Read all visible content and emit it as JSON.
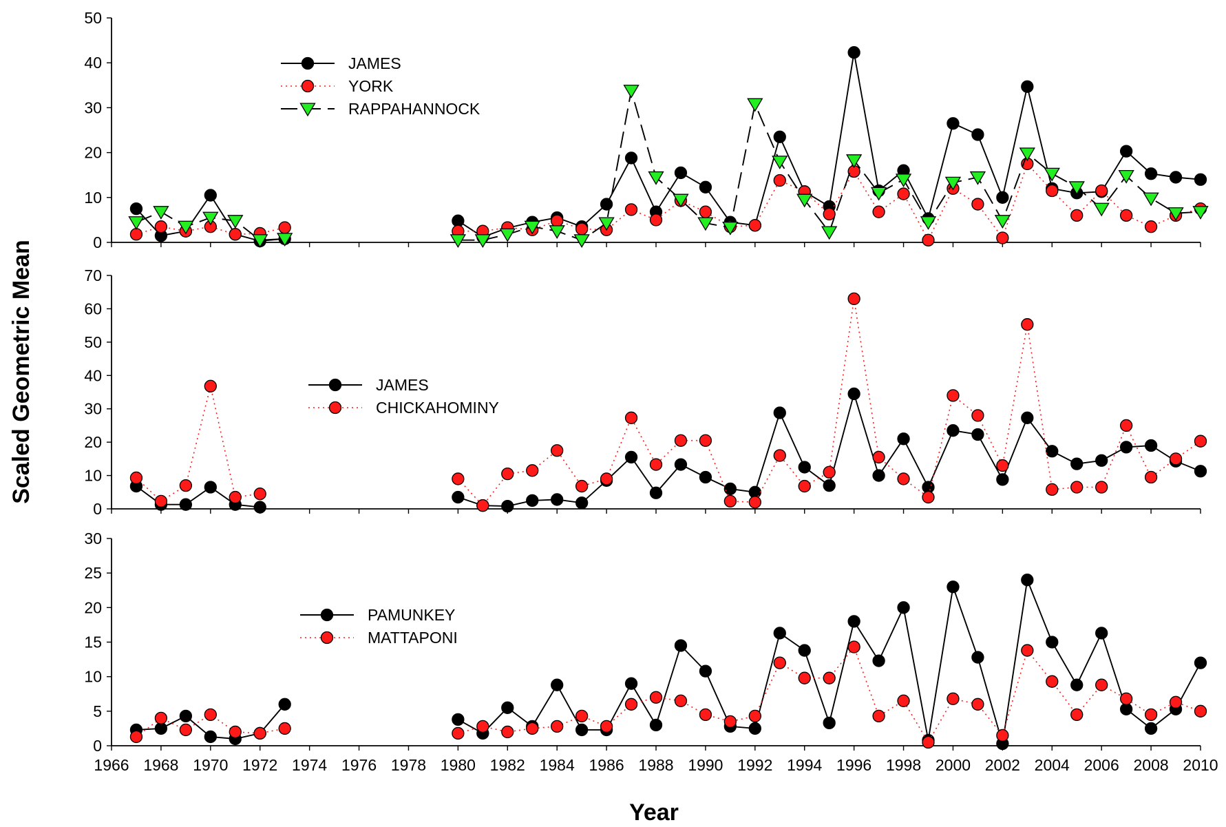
{
  "figure": {
    "ylabel": "Scaled Geometric Mean",
    "xlabel": "Year"
  },
  "colors": {
    "black": "#000000",
    "red": "#ff1a1a",
    "green": "#22ee22"
  },
  "chart_data": [
    {
      "type": "line",
      "title": "",
      "xlabel": "Year",
      "ylabel": "Scaled Geometric Mean",
      "xlim": [
        1966,
        2010
      ],
      "ylim": [
        0,
        50
      ],
      "yticks": [
        0,
        10,
        20,
        30,
        40,
        50
      ],
      "grid": false,
      "legend_position": "top-left",
      "series": [
        {
          "name": "JAMES",
          "color": "#000000",
          "dash": "solid",
          "marker": "circle",
          "segments": [
            {
              "x": [
                1967,
                1968,
                1969,
                1970,
                1971,
                1972,
                1973
              ],
              "y": [
                7.5,
                1.5,
                2.5,
                10.5,
                1.8,
                0.3,
                0.8
              ]
            },
            {
              "x": [
                1980,
                1981,
                1982,
                1983,
                1984,
                1985,
                1986,
                1987,
                1988,
                1989,
                1990,
                1991,
                1992,
                1993,
                1994,
                1995,
                1996,
                1997,
                1998,
                1999,
                2000,
                2001,
                2002,
                2003,
                2004,
                2005,
                2006,
                2007,
                2008,
                2009,
                2010
              ],
              "y": [
                4.8,
                1.2,
                3.2,
                4.5,
                5.5,
                3.5,
                8.5,
                18.8,
                6.8,
                15.5,
                12.3,
                4.5,
                3.8,
                23.5,
                11.3,
                8.0,
                42.3,
                11.5,
                16.0,
                5.3,
                26.5,
                24.0,
                10.0,
                34.7,
                12.0,
                11.0,
                11.3,
                20.3,
                15.3,
                14.5,
                14.0
              ]
            }
          ]
        },
        {
          "name": "YORK",
          "color": "#ff1a1a",
          "dash": "dot",
          "marker": "circle",
          "segments": [
            {
              "x": [
                1967,
                1968,
                1969,
                1970,
                1971,
                1972,
                1973
              ],
              "y": [
                1.8,
                3.5,
                2.5,
                3.5,
                1.8,
                2.0,
                3.3
              ]
            },
            {
              "x": [
                1980,
                1981,
                1982,
                1983,
                1984,
                1985,
                1986,
                1987,
                1988,
                1989,
                1990,
                1991,
                1992,
                1993,
                1994,
                1995,
                1996,
                1997,
                1998,
                1999,
                2000,
                2001,
                2002,
                2003,
                2004,
                2005,
                2006,
                2007,
                2008,
                2009,
                2010
              ],
              "y": [
                2.5,
                2.5,
                3.3,
                2.8,
                4.8,
                3.0,
                2.8,
                7.3,
                5.0,
                9.3,
                6.8,
                3.5,
                3.8,
                13.8,
                11.3,
                6.3,
                15.8,
                6.8,
                10.8,
                0.5,
                12.0,
                8.5,
                1.0,
                17.5,
                11.5,
                6.0,
                11.5,
                6.0,
                3.5,
                6.0,
                7.5
              ]
            }
          ]
        },
        {
          "name": "RAPPAHANNOCK",
          "color": "#000000",
          "fill": "#22ee22",
          "dash": "dash",
          "marker": "triangle-down",
          "segments": [
            {
              "x": [
                1967,
                1968,
                1969,
                1970,
                1971,
                1972,
                1973
              ],
              "y": [
                4.5,
                6.8,
                3.5,
                5.5,
                4.8,
                0.5,
                0.8
              ]
            },
            {
              "x": [
                1980,
                1981,
                1982,
                1983,
                1984,
                1985,
                1986,
                1987,
                1988,
                1989,
                1990,
                1991,
                1992,
                1993,
                1994,
                1995,
                1996,
                1997,
                1998,
                1999,
                2000,
                2001,
                2002,
                2003,
                2004,
                2005,
                2006,
                2007,
                2008,
                2009,
                2010
              ],
              "y": [
                0.5,
                0.5,
                1.8,
                3.5,
                2.5,
                0.5,
                4.3,
                33.8,
                14.5,
                9.5,
                4.3,
                3.3,
                30.8,
                18.0,
                9.5,
                2.3,
                18.3,
                11.0,
                14.0,
                4.5,
                13.3,
                14.5,
                4.8,
                19.8,
                15.3,
                12.3,
                7.5,
                14.8,
                9.8,
                6.5,
                6.8
              ]
            }
          ]
        }
      ]
    },
    {
      "type": "line",
      "title": "",
      "xlabel": "Year",
      "ylabel": "Scaled Geometric Mean",
      "xlim": [
        1966,
        2010
      ],
      "ylim": [
        0,
        70
      ],
      "yticks": [
        0,
        10,
        20,
        30,
        40,
        50,
        60,
        70
      ],
      "grid": false,
      "legend_position": "center-left",
      "series": [
        {
          "name": "JAMES",
          "color": "#000000",
          "dash": "solid",
          "marker": "circle",
          "segments": [
            {
              "x": [
                1967,
                1968,
                1969,
                1970,
                1971,
                1972
              ],
              "y": [
                6.8,
                1.3,
                1.3,
                6.5,
                1.3,
                0.5
              ]
            },
            {
              "x": [
                1980,
                1981,
                1982,
                1983,
                1984,
                1985,
                1986,
                1987,
                1988,
                1989,
                1990,
                1991,
                1992,
                1993,
                1994,
                1995,
                1996,
                1997,
                1998,
                1999,
                2000,
                2001,
                2002,
                2003,
                2004,
                2005,
                2006,
                2007,
                2008,
                2009,
                2010
              ],
              "y": [
                3.5,
                1.0,
                0.8,
                2.5,
                2.8,
                1.8,
                8.5,
                15.5,
                4.8,
                13.3,
                9.5,
                6.0,
                5.0,
                28.8,
                12.5,
                7.0,
                34.5,
                10.0,
                21.0,
                6.5,
                23.5,
                22.3,
                8.8,
                27.3,
                17.3,
                13.5,
                14.5,
                18.5,
                19.0,
                14.3,
                11.3
              ]
            }
          ]
        },
        {
          "name": "CHICKAHOMINY",
          "color": "#ff1a1a",
          "dash": "dot",
          "marker": "circle",
          "segments": [
            {
              "x": [
                1967,
                1968,
                1969,
                1970,
                1971,
                1972
              ],
              "y": [
                9.3,
                2.3,
                7.0,
                36.8,
                3.5,
                4.5
              ]
            },
            {
              "x": [
                1980,
                1981,
                1982,
                1983,
                1984,
                1985,
                1986,
                1987,
                1988,
                1989,
                1990,
                1991,
                1992,
                1993,
                1994,
                1995,
                1996,
                1997,
                1998,
                1999,
                2000,
                2001,
                2002,
                2003,
                2004,
                2005,
                2006,
                2007,
                2008,
                2009,
                2010
              ],
              "y": [
                9.0,
                1.0,
                10.5,
                11.5,
                17.5,
                6.8,
                9.0,
                27.3,
                13.3,
                20.5,
                20.5,
                2.3,
                2.0,
                16.0,
                6.8,
                11.0,
                63.0,
                15.5,
                9.0,
                3.5,
                34.0,
                28.0,
                13.0,
                55.3,
                5.8,
                6.5,
                6.5,
                25.0,
                9.5,
                15.0,
                20.3
              ]
            }
          ]
        }
      ]
    },
    {
      "type": "line",
      "title": "",
      "xlabel": "Year",
      "ylabel": "Scaled Geometric Mean",
      "xlim": [
        1966,
        2010
      ],
      "ylim": [
        0,
        30
      ],
      "yticks": [
        0,
        5,
        10,
        15,
        20,
        25,
        30
      ],
      "xticks": [
        1966,
        1968,
        1970,
        1972,
        1974,
        1976,
        1978,
        1980,
        1982,
        1984,
        1986,
        1988,
        1990,
        1992,
        1994,
        1996,
        1998,
        2000,
        2002,
        2004,
        2006,
        2008,
        2010
      ],
      "grid": false,
      "legend_position": "center-left",
      "series": [
        {
          "name": "PAMUNKEY",
          "color": "#000000",
          "dash": "solid",
          "marker": "circle",
          "segments": [
            {
              "x": [
                1967,
                1968,
                1969,
                1970,
                1971,
                1972,
                1973
              ],
              "y": [
                2.3,
                2.5,
                4.3,
                1.3,
                1.0,
                1.8,
                6.0
              ]
            },
            {
              "x": [
                1980,
                1981,
                1982,
                1983,
                1984,
                1985,
                1986,
                1987,
                1988,
                1989,
                1990,
                1991,
                1992,
                1993,
                1994,
                1995,
                1996,
                1997,
                1998,
                1999,
                2000,
                2001,
                2002,
                2003,
                2004,
                2005,
                2006,
                2007,
                2008,
                2009,
                2010
              ],
              "y": [
                3.8,
                1.8,
                5.5,
                2.8,
                8.8,
                2.3,
                2.3,
                9.0,
                3.0,
                14.5,
                10.8,
                2.8,
                2.5,
                16.3,
                13.8,
                3.3,
                18.0,
                12.3,
                20.0,
                0.8,
                23.0,
                12.8,
                0.3,
                24.0,
                15.0,
                8.8,
                16.3,
                5.3,
                2.5,
                5.3,
                12.0
              ]
            }
          ]
        },
        {
          "name": "MATTAPONI",
          "color": "#ff1a1a",
          "dash": "dot",
          "marker": "circle",
          "segments": [
            {
              "x": [
                1967,
                1968,
                1969,
                1970,
                1971,
                1972,
                1973
              ],
              "y": [
                1.3,
                4.0,
                2.3,
                4.5,
                2.0,
                1.8,
                2.5
              ]
            },
            {
              "x": [
                1980,
                1981,
                1982,
                1983,
                1984,
                1985,
                1986,
                1987,
                1988,
                1989,
                1990,
                1991,
                1992,
                1993,
                1994,
                1995,
                1996,
                1997,
                1998,
                1999,
                2000,
                2001,
                2002,
                2003,
                2004,
                2005,
                2006,
                2007,
                2008,
                2009,
                2010
              ],
              "y": [
                1.8,
                2.8,
                2.0,
                2.5,
                2.8,
                4.3,
                2.8,
                6.0,
                7.0,
                6.5,
                4.5,
                3.5,
                4.3,
                12.0,
                9.8,
                9.8,
                14.3,
                4.3,
                6.5,
                0.5,
                6.8,
                6.0,
                1.5,
                13.8,
                9.3,
                4.5,
                8.8,
                6.8,
                4.5,
                6.3,
                5.0
              ]
            }
          ]
        }
      ]
    }
  ]
}
